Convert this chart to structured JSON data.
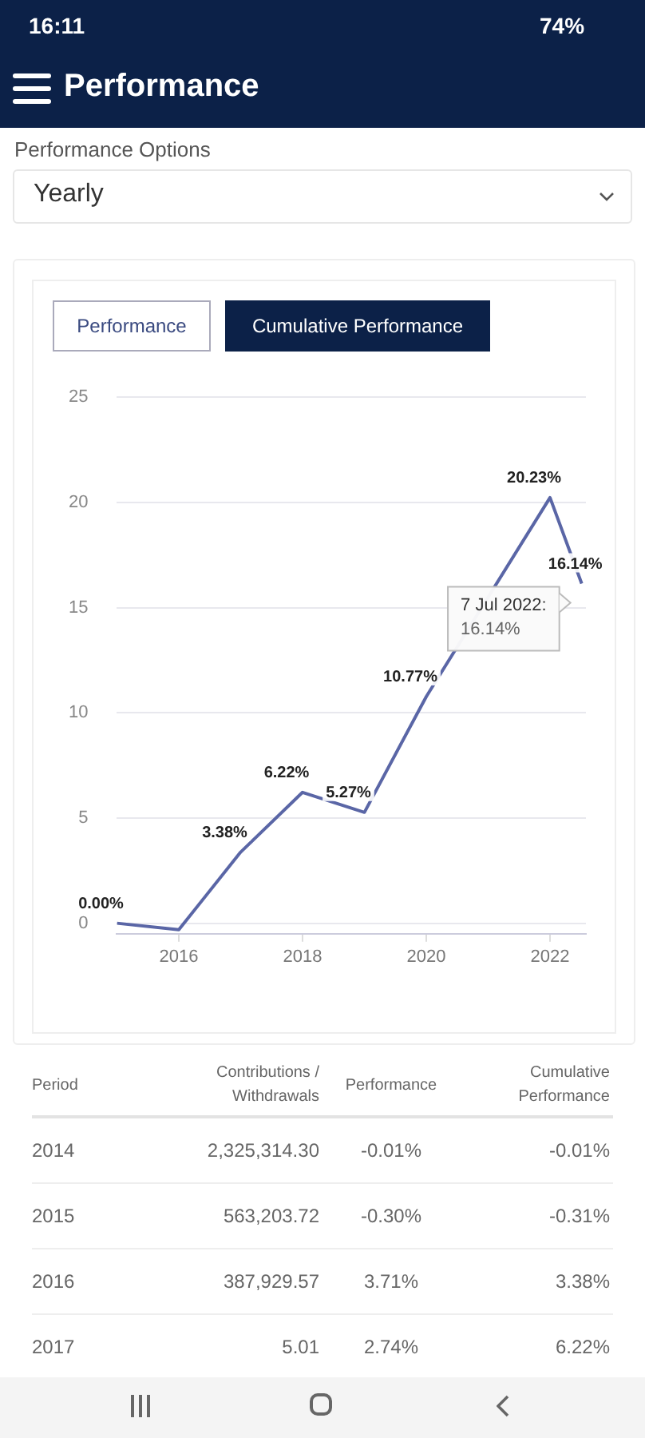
{
  "chart_data": {
    "type": "line",
    "title": "Performance",
    "x": [
      "2015",
      "2016",
      "2017",
      "2018",
      "2019",
      "2020",
      "2022",
      "2022-07-07"
    ],
    "series": [
      {
        "color": "#5a66a6",
        "values": [
          0,
          -0.31,
          3.38,
          6.22,
          5.27,
          10.77,
          20.23,
          16.14
        ],
        "value_labels": [
          "0.00%",
          null,
          "3.38%",
          "6.22%",
          "5.27%",
          "10.77%",
          "20.23%",
          "16.14%"
        ]
      }
    ],
    "xlim": [
      "2015",
      "2022-08"
    ],
    "xticks": [
      "2016",
      "2018",
      "2020",
      "2022"
    ],
    "ylim": [
      -0.5,
      25
    ],
    "yticks": [
      0,
      5,
      10,
      15,
      20,
      25
    ],
    "grid": "y",
    "legend": false,
    "marker": "none",
    "line_style": "solid",
    "annotations": [
      "16:11",
      "74%",
      "Performance Options",
      "Yearly",
      "Performance",
      "Cumulative Performance",
      "Period",
      "Contributions / Withdrawals",
      "Performance",
      "Cumulative Performance",
      "2014",
      "2,325,314.30",
      "-0.01%",
      "-0.01%",
      "2015",
      "563,203.72",
      "-0.30%",
      "-0.31%",
      "2016",
      "387,929.57",
      "3.71%",
      "3.38%",
      "2017",
      "5.01",
      "2.74%",
      "6.22%",
      {
        "text": "7 Jul 2022:\n16.14%",
        "x": "2022-07-07",
        "y": 16.14
      }
    ]
  }
}
